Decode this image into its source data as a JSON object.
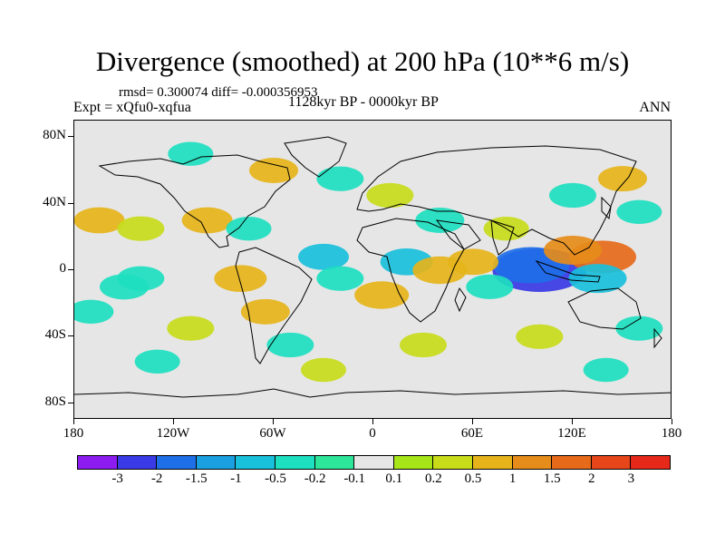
{
  "chart_data": {
    "type": "heatmap",
    "title": "Divergence (smoothed) at 200 hPa (10**6 m/s)",
    "stats": "rmsd= 0.300074 diff= -0.000356953",
    "experiment": "Expt = xQfu0-xqfua",
    "period": "1128kyr BP - 0000kyr BP",
    "season": "ANN",
    "xlim": [
      -180,
      180
    ],
    "ylim": [
      -90,
      90
    ],
    "x_ticks": [
      {
        "value": -180,
        "label": "180"
      },
      {
        "value": -120,
        "label": "120W"
      },
      {
        "value": -60,
        "label": "60W"
      },
      {
        "value": 0,
        "label": "0"
      },
      {
        "value": 60,
        "label": "60E"
      },
      {
        "value": 120,
        "label": "120E"
      },
      {
        "value": 180,
        "label": "180"
      }
    ],
    "y_ticks": [
      {
        "value": 80,
        "label": "80N"
      },
      {
        "value": 40,
        "label": "40N"
      },
      {
        "value": 0,
        "label": "0"
      },
      {
        "value": -40,
        "label": "40S"
      },
      {
        "value": -80,
        "label": "80S"
      }
    ],
    "colorbar": {
      "levels": [
        "-3",
        "-2",
        "-1.5",
        "-1",
        "-0.5",
        "-0.2",
        "-0.1",
        "0.1",
        "0.2",
        "0.5",
        "1",
        "1.5",
        "2",
        "3"
      ],
      "colors": [
        "#8c1cf0",
        "#3a3ae6",
        "#1f6fe8",
        "#1aa0e0",
        "#19c0dc",
        "#1de0c0",
        "#2ee69a",
        "#e6e6e6",
        "#a6e619",
        "#c8dc1a",
        "#e6b41a",
        "#e68c1a",
        "#e66a1a",
        "#e6461a",
        "#e6281a"
      ]
    },
    "anomalies": [
      {
        "lon": 100,
        "lat": 0,
        "value": -3.0
      },
      {
        "lon": 95,
        "lat": 3,
        "value": -2.0
      },
      {
        "lon": 138,
        "lat": 8,
        "value": 1.5
      },
      {
        "lon": 135,
        "lat": -5,
        "value": -1.0
      },
      {
        "lon": 120,
        "lat": 12,
        "value": 1.0
      },
      {
        "lon": -150,
        "lat": -10,
        "value": -0.5
      },
      {
        "lon": -140,
        "lat": -5,
        "value": -0.4
      },
      {
        "lon": -170,
        "lat": -25,
        "value": -0.3
      },
      {
        "lon": -165,
        "lat": 30,
        "value": 0.6
      },
      {
        "lon": -140,
        "lat": 25,
        "value": 0.4
      },
      {
        "lon": -100,
        "lat": 30,
        "value": 0.6
      },
      {
        "lon": -75,
        "lat": 25,
        "value": -0.3
      },
      {
        "lon": -80,
        "lat": -5,
        "value": 0.7
      },
      {
        "lon": -65,
        "lat": -25,
        "value": 0.5
      },
      {
        "lon": -30,
        "lat": 8,
        "value": -0.6
      },
      {
        "lon": -20,
        "lat": -5,
        "value": -0.4
      },
      {
        "lon": 5,
        "lat": -15,
        "value": 0.8
      },
      {
        "lon": 20,
        "lat": 5,
        "value": -0.7
      },
      {
        "lon": 40,
        "lat": 0,
        "value": 0.8
      },
      {
        "lon": 60,
        "lat": 5,
        "value": 0.6
      },
      {
        "lon": 70,
        "lat": -10,
        "value": -0.4
      },
      {
        "lon": 80,
        "lat": 25,
        "value": 0.3
      },
      {
        "lon": 40,
        "lat": 30,
        "value": -0.5
      },
      {
        "lon": 10,
        "lat": 45,
        "value": 0.4
      },
      {
        "lon": -20,
        "lat": 55,
        "value": -0.4
      },
      {
        "lon": -60,
        "lat": 60,
        "value": 0.5
      },
      {
        "lon": -110,
        "lat": 70,
        "value": -0.3
      },
      {
        "lon": 150,
        "lat": 55,
        "value": 0.5
      },
      {
        "lon": 120,
        "lat": 45,
        "value": -0.4
      },
      {
        "lon": 160,
        "lat": 35,
        "value": -0.3
      },
      {
        "lon": -110,
        "lat": -35,
        "value": 0.4
      },
      {
        "lon": -130,
        "lat": -55,
        "value": -0.3
      },
      {
        "lon": -50,
        "lat": -45,
        "value": -0.4
      },
      {
        "lon": 30,
        "lat": -45,
        "value": 0.4
      },
      {
        "lon": 100,
        "lat": -40,
        "value": 0.4
      },
      {
        "lon": 160,
        "lat": -35,
        "value": -0.4
      },
      {
        "lon": 140,
        "lat": -60,
        "value": -0.3
      },
      {
        "lon": -30,
        "lat": -60,
        "value": 0.3
      }
    ]
  }
}
